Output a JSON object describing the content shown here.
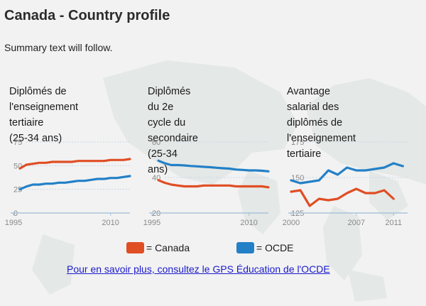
{
  "page": {
    "title": "Canada - Country profile",
    "summary": "Summary text will follow.",
    "link_text": "Pour en savoir plus, consultez le GPS Éducation de l'OCDE "
  },
  "colors": {
    "canada": "#e04e24",
    "oecd": "#2380c7",
    "axis": "#a9c3dd",
    "tick_text": "#888888"
  },
  "legend": [
    {
      "label": "= Canada",
      "color": "#e04e24"
    },
    {
      "label": "= OCDE",
      "color": "#2380c7"
    }
  ],
  "chart_data": [
    {
      "type": "line",
      "title": "Diplômés de l'enseignement tertiaire (25-34 ans)",
      "title_lines": [
        "Diplômés de",
        "l'enseignement tertiaire",
        "(25-34 ans)"
      ],
      "xlim": [
        1995,
        2013
      ],
      "ylim": [
        0,
        75
      ],
      "x_ticks": [
        1995,
        2010
      ],
      "y_ticks": [
        0,
        25,
        50,
        75
      ],
      "grid": "horizontal",
      "series": [
        {
          "name": "Canada",
          "color": "#e04e24",
          "x": [
            1996,
            1997,
            1998,
            1999,
            2000,
            2001,
            2002,
            2003,
            2004,
            2005,
            2006,
            2007,
            2008,
            2009,
            2010,
            2011,
            2012,
            2013
          ],
          "values": [
            47,
            51,
            52,
            53,
            53,
            54,
            54,
            54,
            54,
            55,
            55,
            55,
            55,
            55,
            56,
            56,
            56,
            57
          ]
        },
        {
          "name": "OCDE",
          "color": "#2380c7",
          "x": [
            1996,
            1997,
            1998,
            1999,
            2000,
            2001,
            2002,
            2003,
            2004,
            2005,
            2006,
            2007,
            2008,
            2009,
            2010,
            2011,
            2012,
            2013
          ],
          "values": [
            25,
            28,
            30,
            30,
            31,
            31,
            32,
            32,
            33,
            34,
            34,
            35,
            36,
            36,
            37,
            37,
            38,
            39
          ]
        }
      ]
    },
    {
      "type": "line",
      "title": "Diplômés du 2e cycle du secondaire (25-34 ans)",
      "title_lines": [
        "Diplômés du 2e cycle du",
        "secondaire (25-34 ans)"
      ],
      "xlim": [
        1995,
        2013
      ],
      "ylim": [
        20,
        60
      ],
      "x_ticks": [
        1995,
        2010
      ],
      "y_ticks": [
        20,
        40,
        60
      ],
      "grid": "horizontal",
      "series": [
        {
          "name": "Canada",
          "color": "#e04e24",
          "x": [
            1996,
            1997,
            1998,
            1999,
            2000,
            2001,
            2002,
            2003,
            2004,
            2005,
            2006,
            2007,
            2008,
            2009,
            2010,
            2011,
            2012,
            2013
          ],
          "values": [
            38.5,
            37,
            36,
            35.5,
            35,
            35,
            35,
            35.5,
            35.5,
            35.5,
            35.5,
            35.5,
            35,
            35,
            35,
            35,
            35,
            34.5
          ]
        },
        {
          "name": "OCDE",
          "color": "#2380c7",
          "x": [
            1996,
            1997,
            1998,
            1999,
            2000,
            2001,
            2002,
            2003,
            2004,
            2005,
            2006,
            2007,
            2008,
            2009,
            2010,
            2011,
            2012,
            2013
          ],
          "values": [
            49.5,
            48,
            47,
            47,
            46.8,
            46.5,
            46.3,
            46,
            45.8,
            45.5,
            45.2,
            45,
            44.5,
            44.3,
            44,
            44,
            43.8,
            43.5
          ]
        }
      ]
    },
    {
      "type": "line",
      "title": "Avantage salarial des diplômés de l'enseignement tertiaire",
      "title_lines": [
        "Avantage salarial des",
        "diplômés de",
        "l'enseignement tertiaire"
      ],
      "xlim": [
        2000,
        2012.5
      ],
      "ylim": [
        125,
        175
      ],
      "x_ticks": [
        2000,
        2007,
        2011
      ],
      "y_ticks": [
        125,
        150,
        175
      ],
      "grid": "horizontal",
      "series": [
        {
          "name": "Canada",
          "color": "#e04e24",
          "x": [
            2000,
            2001,
            2002,
            2003,
            2004,
            2005,
            2006,
            2007,
            2008,
            2009,
            2010,
            2011
          ],
          "values": [
            140,
            141,
            130,
            135,
            134,
            135,
            139,
            142,
            139,
            139,
            141,
            135
          ]
        },
        {
          "name": "OCDE",
          "color": "#2380c7",
          "x": [
            2000,
            2001,
            2002,
            2003,
            2004,
            2005,
            2006,
            2007,
            2008,
            2009,
            2010,
            2011,
            2012
          ],
          "values": [
            148,
            146,
            147,
            148,
            155,
            152,
            157,
            155,
            155,
            156,
            157,
            160,
            158
          ]
        }
      ]
    }
  ]
}
